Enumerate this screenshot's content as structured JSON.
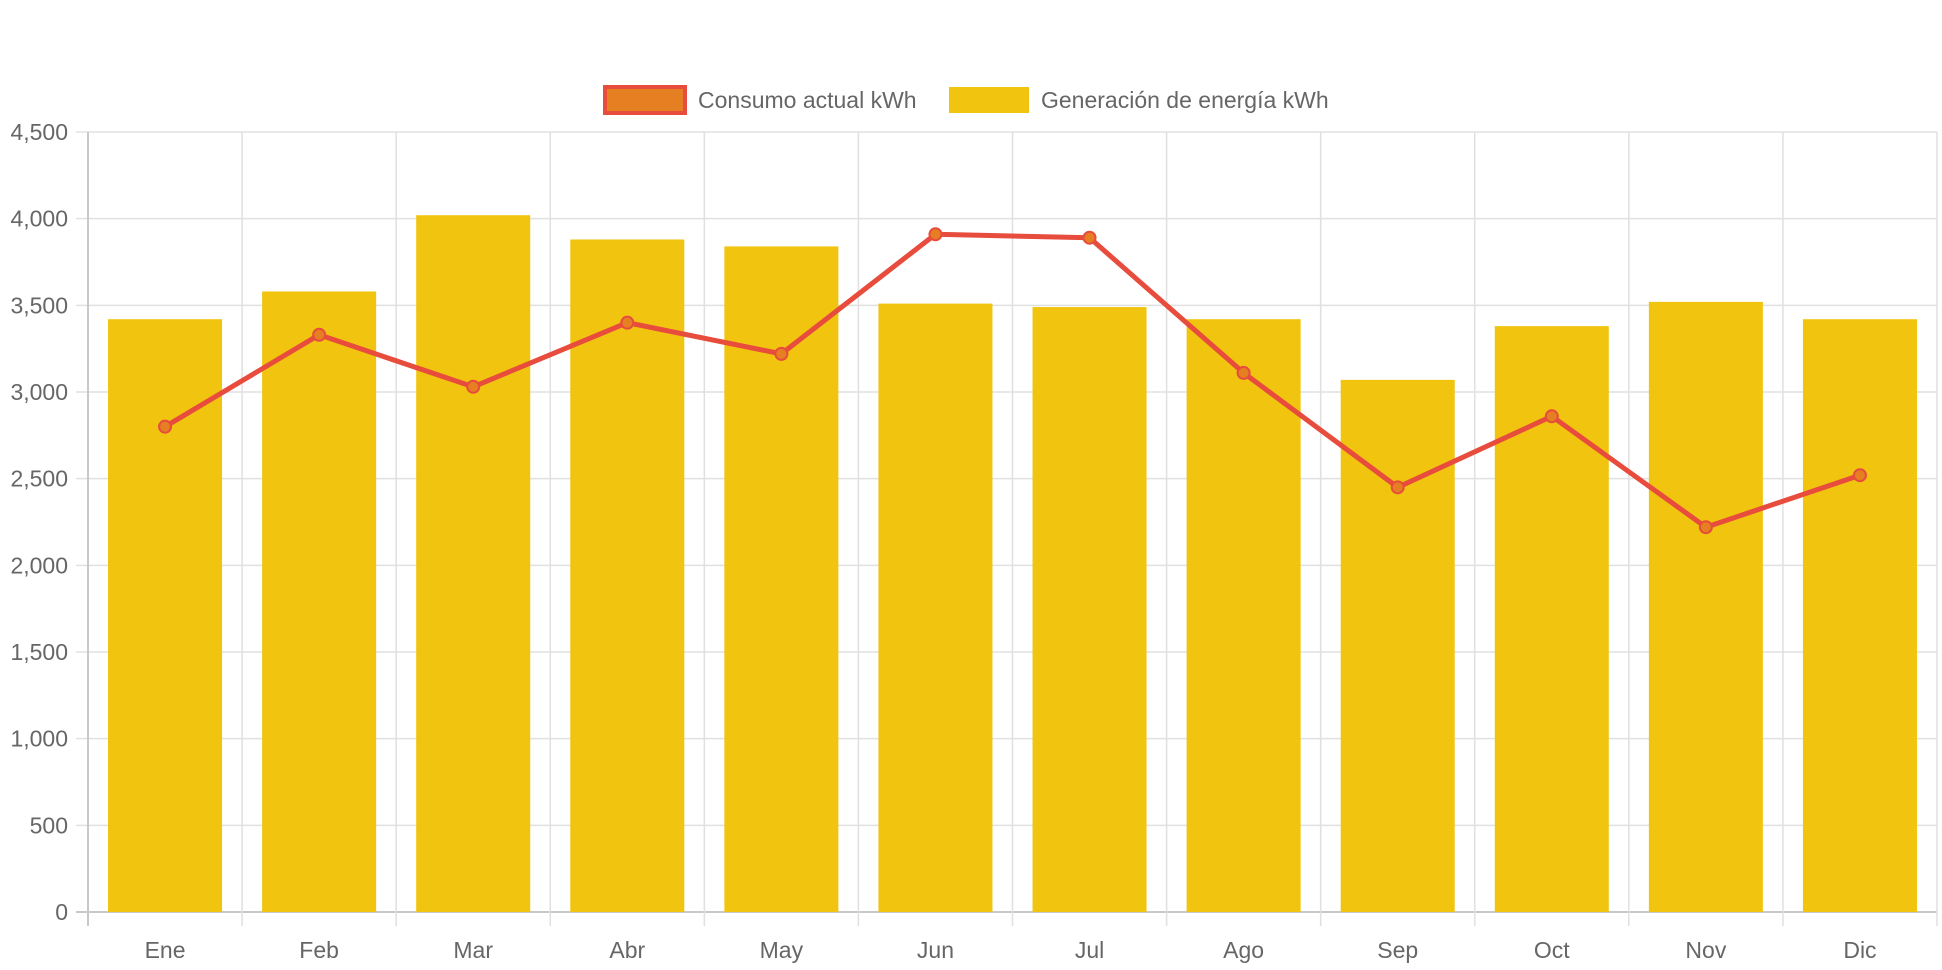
{
  "chart_data": {
    "type": "bar",
    "title": "",
    "xlabel": "",
    "ylabel": "",
    "categories": [
      "Ene",
      "Feb",
      "Mar",
      "Abr",
      "May",
      "Jun",
      "Jul",
      "Ago",
      "Sep",
      "Oct",
      "Nov",
      "Dic"
    ],
    "ylim": [
      0,
      4500
    ],
    "y_ticks": [
      0,
      500,
      1000,
      1500,
      2000,
      2500,
      3000,
      3500,
      4000,
      4500
    ],
    "y_tick_labels": [
      "0",
      "500",
      "1,000",
      "1,500",
      "2,000",
      "2,500",
      "3,000",
      "3,500",
      "4,000",
      "4,500"
    ],
    "grid": true,
    "legend_position": "top-center",
    "series": [
      {
        "name": "Consumo actual kWh",
        "type": "line",
        "line_color": "#E74C3C",
        "point_color": "#E67E22",
        "values": [
          2800,
          3330,
          3030,
          3400,
          3220,
          3910,
          3890,
          3110,
          2450,
          2860,
          2220,
          2520
        ]
      },
      {
        "name": "Generación de energía kWh",
        "type": "bar",
        "color": "#F1C40F",
        "values": [
          3420,
          3580,
          4020,
          3880,
          3840,
          3510,
          3490,
          3420,
          3070,
          3380,
          3520,
          3420
        ]
      }
    ]
  }
}
